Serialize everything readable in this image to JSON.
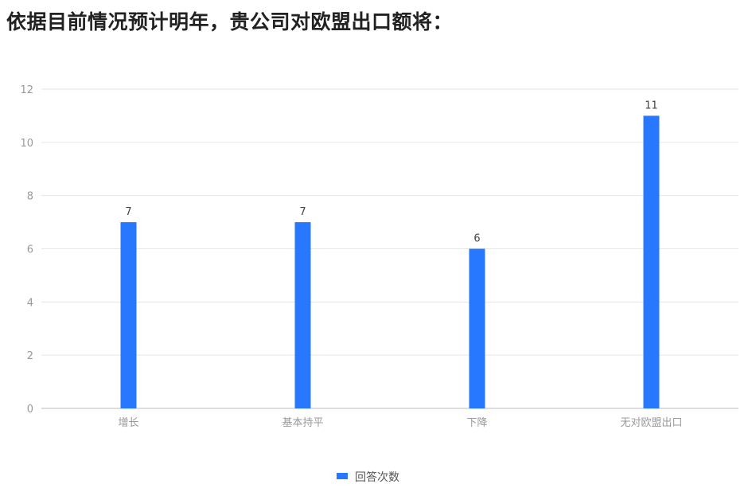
{
  "title": "依据目前情况预计明年，贵公司对欧盟出口额将：",
  "chart_data": {
    "type": "bar",
    "categories": [
      "增长",
      "基本持平",
      "下降",
      "无对欧盟出口"
    ],
    "series": [
      {
        "name": "回答次数",
        "values": [
          7,
          7,
          6,
          11
        ]
      }
    ],
    "ylim": [
      0,
      12
    ],
    "yticks": [
      0,
      2,
      4,
      6,
      8,
      10,
      12
    ],
    "grid": true,
    "legend": "bottom",
    "colors": {
      "bar": "#2878ff"
    }
  }
}
